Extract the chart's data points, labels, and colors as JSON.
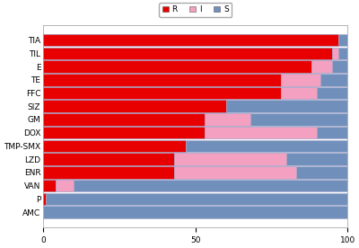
{
  "categories": [
    "TIA",
    "TIL",
    "E",
    "TE",
    "FFC",
    "SIZ",
    "GM",
    "DOX",
    "TMP-SMX",
    "LZD",
    "ENR",
    "VAN",
    "P",
    "AMC"
  ],
  "R": [
    97,
    95,
    88,
    78,
    78,
    60,
    53,
    53,
    47,
    43,
    43,
    4,
    1,
    0
  ],
  "I": [
    0,
    2,
    7,
    13,
    12,
    0,
    15,
    37,
    0,
    37,
    40,
    6,
    0,
    0
  ],
  "S": [
    3,
    3,
    5,
    9,
    10,
    40,
    32,
    10,
    53,
    20,
    17,
    90,
    99,
    100
  ],
  "color_R": "#e80000",
  "color_I": "#f4a0c0",
  "color_S": "#7090bb",
  "xlim": [
    0,
    100
  ],
  "xticks": [
    0,
    50,
    100
  ],
  "background_color": "#ffffff",
  "bar_bg_color": "#c8d4e8",
  "bar_height": 0.92,
  "axis_fontsize": 6.5,
  "legend_fontsize": 6.5,
  "bar_edgecolor": "#aaaacc",
  "bar_linewidth": 0.4
}
